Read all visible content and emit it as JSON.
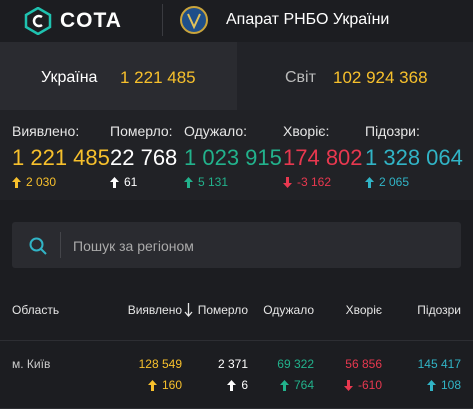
{
  "header": {
    "logo": "COTA",
    "organization": "Апарат РНБО України"
  },
  "tabs": [
    {
      "label": "Україна",
      "value": "1 221 485"
    },
    {
      "label": "Світ",
      "value": "102 924 368"
    }
  ],
  "stats": [
    {
      "label": "Виявлено:",
      "value": "1 221 485",
      "change": "2 030"
    },
    {
      "label": "Померло:",
      "value": "22 768",
      "change": "61"
    },
    {
      "label": "Одужало:",
      "value": "1 023 915",
      "change": "5 131"
    },
    {
      "label": "Хворіє:",
      "value": "174 802",
      "change": "-3 162"
    },
    {
      "label": "Підозри:",
      "value": "1 328 064",
      "change": "2 065"
    }
  ],
  "search": {
    "placeholder": "Пошук за регіоном"
  },
  "table": {
    "columns": [
      "Область",
      "Виявлено",
      "Померло",
      "Одужало",
      "Хворіє",
      "Підозри"
    ],
    "rows": [
      {
        "region": "м. Київ",
        "cells": [
          {
            "value": "128 549",
            "change": "160"
          },
          {
            "value": "2 371",
            "change": "6"
          },
          {
            "value": "69 322",
            "change": "764"
          },
          {
            "value": "56 856",
            "change": "-610"
          },
          {
            "value": "145 417",
            "change": "108"
          }
        ]
      }
    ]
  }
}
